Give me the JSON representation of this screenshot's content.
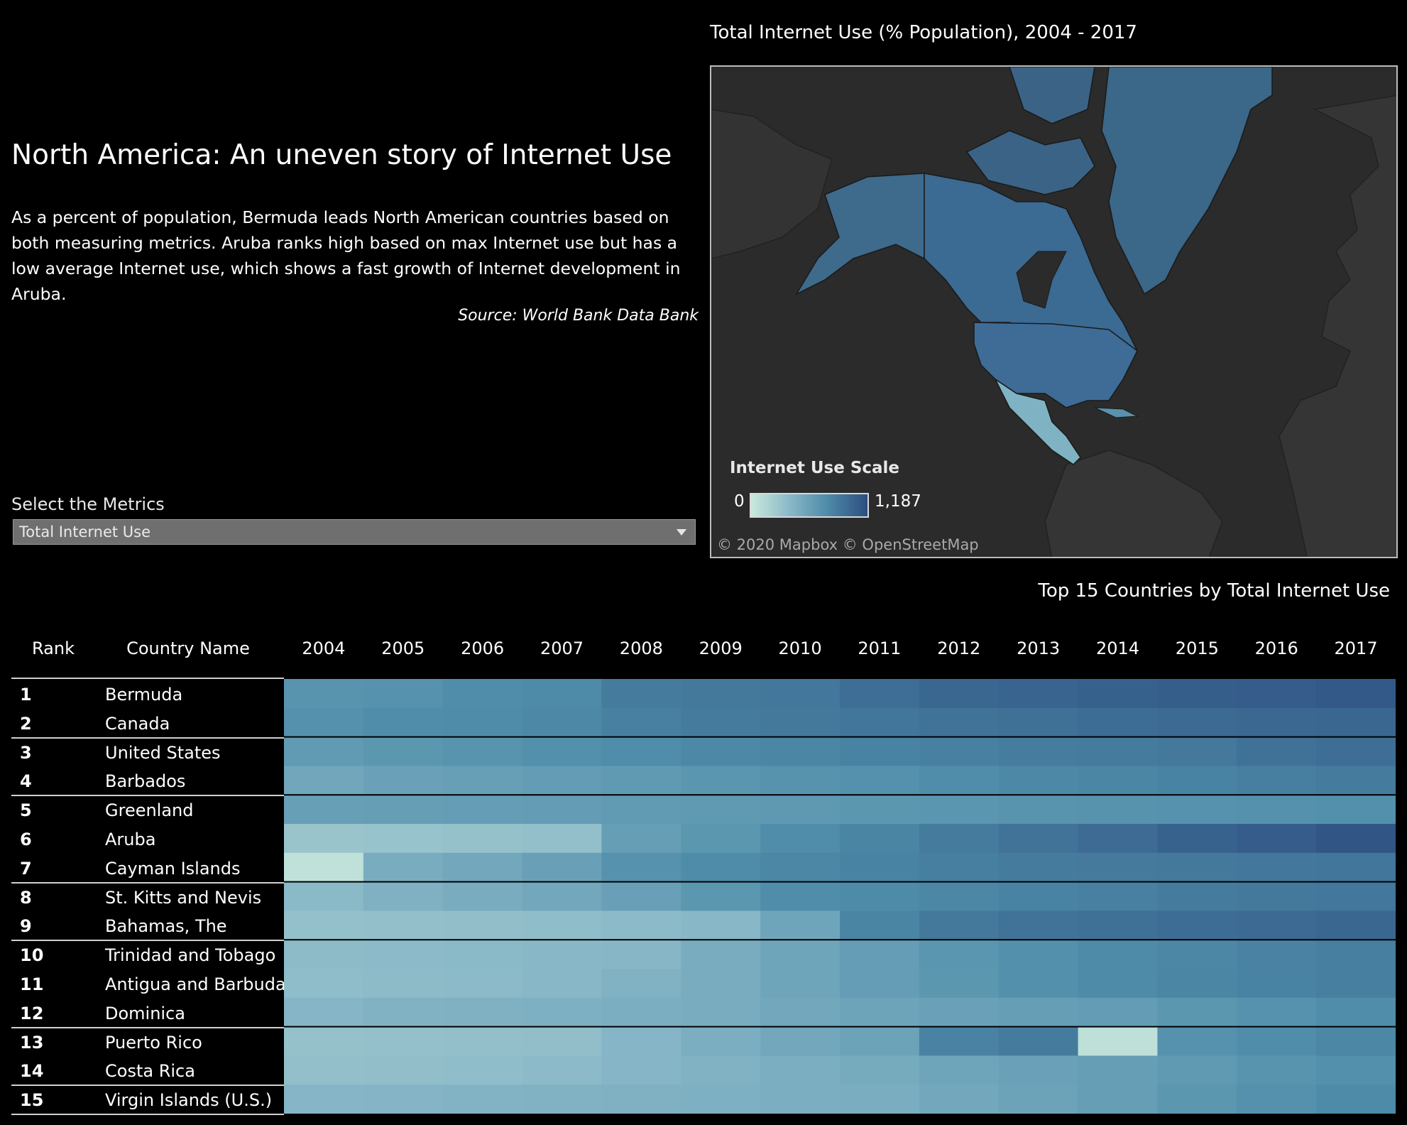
{
  "story": {
    "title": "North America: An uneven story of Internet Use",
    "body": "As a percent of population, Bermuda leads North  American countries based on both measuring metrics. Aruba ranks high based on max Internet use but has a low average Internet use, which shows a fast growth of Internet development in Aruba.",
    "source": "Source: World Bank Data Bank"
  },
  "filter": {
    "label": "Select the Metrics",
    "selected": "Total Internet Use"
  },
  "map": {
    "title": "Total Internet Use (% Population), 2004 - 2017",
    "legend_title": "Internet Use Scale",
    "legend_min": "0",
    "legend_max": "1,187",
    "attribution": "© 2020 Mapbox  © OpenStreetMap",
    "colors": {
      "low": "#c9e8dc",
      "high": "#2d4e80",
      "land": "#333333",
      "water": "#2b2b2b"
    }
  },
  "table": {
    "title": "Top 15 Countries by Total Internet Use",
    "headers": {
      "rank": "Rank",
      "country": "Country Name"
    },
    "years": [
      "2004",
      "2005",
      "2006",
      "2007",
      "2008",
      "2009",
      "2010",
      "2011",
      "2012",
      "2013",
      "2014",
      "2015",
      "2016",
      "2017"
    ],
    "rows": [
      {
        "rank": "1",
        "country": "Bermuda"
      },
      {
        "rank": "2",
        "country": "Canada"
      },
      {
        "rank": "3",
        "country": "United States"
      },
      {
        "rank": "4",
        "country": "Barbados"
      },
      {
        "rank": "5",
        "country": "Greenland"
      },
      {
        "rank": "6",
        "country": "Aruba"
      },
      {
        "rank": "7",
        "country": "Cayman Islands"
      },
      {
        "rank": "8",
        "country": "St. Kitts and Nevis"
      },
      {
        "rank": "9",
        "country": "Bahamas, The"
      },
      {
        "rank": "10",
        "country": "Trinidad and Tobago"
      },
      {
        "rank": "11",
        "country": "Antigua and Barbuda"
      },
      {
        "rank": "12",
        "country": "Dominica"
      },
      {
        "rank": "13",
        "country": "Puerto Rico"
      },
      {
        "rank": "14",
        "country": "Costa Rica"
      },
      {
        "rank": "15",
        "country": "Virgin Islands (U.S.)"
      }
    ]
  },
  "chart_data": {
    "type": "heatmap",
    "title": "Top 15 Countries by Total Internet Use",
    "x": [
      "2004",
      "2005",
      "2006",
      "2007",
      "2008",
      "2009",
      "2010",
      "2011",
      "2012",
      "2013",
      "2014",
      "2015",
      "2016",
      "2017"
    ],
    "y": [
      "Bermuda",
      "Canada",
      "United States",
      "Barbados",
      "Greenland",
      "Aruba",
      "Cayman Islands",
      "St. Kitts and Nevis",
      "Bahamas, The",
      "Trinidad and Tobago",
      "Antigua and Barbuda",
      "Dominica",
      "Puerto Rico",
      "Costa Rica",
      "Virgin Islands (U.S.)"
    ],
    "color_scale": {
      "min": 0,
      "max": 1187,
      "low_color": "#c9e8dc",
      "high_color": "#2d4e80"
    },
    "values": [
      [
        700,
        720,
        760,
        780,
        880,
        900,
        910,
        970,
        1020,
        1040,
        1060,
        1080,
        1090,
        1110
      ],
      [
        730,
        760,
        770,
        790,
        850,
        880,
        900,
        920,
        940,
        960,
        980,
        1000,
        1010,
        1020
      ],
      [
        650,
        680,
        700,
        740,
        760,
        790,
        810,
        830,
        850,
        870,
        880,
        900,
        950,
        970
      ],
      [
        550,
        590,
        610,
        640,
        660,
        690,
        710,
        730,
        760,
        790,
        810,
        830,
        860,
        880
      ],
      [
        610,
        620,
        630,
        640,
        650,
        660,
        670,
        680,
        690,
        700,
        710,
        720,
        730,
        740
      ],
      [
        300,
        310,
        320,
        340,
        620,
        680,
        760,
        820,
        880,
        940,
        990,
        1050,
        1090,
        1140
      ],
      [
        60,
        500,
        540,
        600,
        720,
        770,
        800,
        830,
        860,
        880,
        890,
        900,
        910,
        920
      ],
      [
        390,
        460,
        500,
        540,
        600,
        680,
        760,
        780,
        800,
        830,
        850,
        880,
        900,
        910
      ],
      [
        330,
        340,
        350,
        360,
        380,
        400,
        560,
        820,
        900,
        940,
        960,
        980,
        1000,
        1020
      ],
      [
        370,
        380,
        390,
        400,
        410,
        500,
        560,
        630,
        690,
        740,
        780,
        800,
        840,
        860
      ],
      [
        360,
        370,
        380,
        400,
        450,
        500,
        560,
        630,
        680,
        740,
        780,
        810,
        830,
        860
      ],
      [
        420,
        450,
        460,
        470,
        480,
        500,
        540,
        570,
        590,
        620,
        640,
        680,
        720,
        760
      ],
      [
        320,
        330,
        340,
        350,
        420,
        480,
        540,
        580,
        840,
        880,
        70,
        720,
        760,
        800
      ],
      [
        340,
        350,
        360,
        380,
        420,
        450,
        480,
        520,
        560,
        590,
        620,
        660,
        700,
        740
      ],
      [
        420,
        430,
        440,
        450,
        460,
        470,
        480,
        490,
        540,
        580,
        620,
        680,
        730,
        780
      ]
    ]
  }
}
